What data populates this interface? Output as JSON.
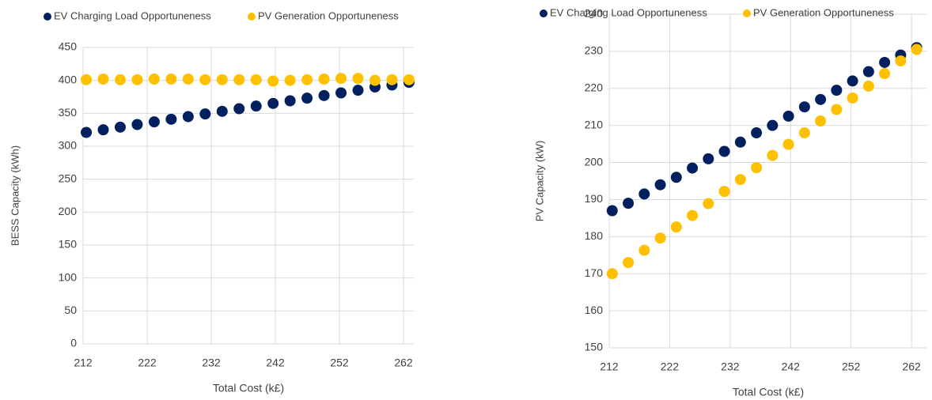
{
  "chart_data": [
    {
      "type": "scatter",
      "x": [
        212.5,
        215.15,
        217.8,
        220.45,
        223.1,
        225.75,
        228.4,
        231.05,
        233.7,
        236.35,
        239,
        241.65,
        244.3,
        246.95,
        249.6,
        252.25,
        254.9,
        257.55,
        260.2,
        262.85
      ],
      "series": [
        {
          "name": "EV Charging Load Opportuneness",
          "color": "#002060",
          "values": [
            321,
            325,
            329,
            333,
            337,
            341,
            345,
            349,
            353,
            357,
            361,
            365,
            369,
            373,
            377,
            381,
            385,
            390,
            393,
            397
          ]
        },
        {
          "name": "PV Generation Opportuneness",
          "color": "#ffc000",
          "values": [
            401,
            402,
            401,
            401,
            402,
            402,
            402,
            401,
            401,
            401,
            401,
            399,
            400,
            401,
            402,
            403,
            403,
            400,
            401,
            401
          ]
        }
      ],
      "xlim": [
        212,
        263.6
      ],
      "xticks": [
        212,
        222,
        232,
        242,
        252,
        262
      ],
      "ylim": [
        0,
        450
      ],
      "yticks": [
        0,
        50,
        100,
        150,
        200,
        250,
        300,
        350,
        400,
        450
      ],
      "xlabel": "Total Cost (k£)",
      "ylabel": "BESS Capacity (kWh)",
      "grid": true
    },
    {
      "type": "scatter",
      "x": [
        212.5,
        215.15,
        217.8,
        220.45,
        223.1,
        225.75,
        228.4,
        231.05,
        233.7,
        236.35,
        239,
        241.65,
        244.3,
        246.95,
        249.6,
        252.25,
        254.9,
        257.55,
        260.2,
        262.85
      ],
      "series": [
        {
          "name": "EV Charging Load Opportuneness",
          "color": "#002060",
          "values": [
            187,
            189,
            191.5,
            194,
            196,
            198.5,
            201,
            203,
            205.5,
            208,
            210,
            212.5,
            215,
            217,
            219.5,
            222,
            224.5,
            227,
            229,
            231
          ]
        },
        {
          "name": "PV Generation Opportuneness",
          "color": "#ffc000",
          "values": [
            170,
            173,
            176.3,
            179.6,
            182.6,
            185.7,
            188.9,
            192.2,
            195.4,
            198.6,
            201.9,
            204.9,
            208,
            211.2,
            214.3,
            217.4,
            220.6,
            224,
            227.4,
            230.5
          ]
        }
      ],
      "xlim": [
        212,
        264.6
      ],
      "xticks": [
        212,
        222,
        232,
        242,
        252,
        262
      ],
      "ylim": [
        150,
        240
      ],
      "yticks": [
        150,
        160,
        170,
        180,
        190,
        200,
        210,
        220,
        230,
        240
      ],
      "xlabel": "Total Cost (k£)",
      "ylabel": "PV Capacity (kW)",
      "grid": true
    }
  ]
}
